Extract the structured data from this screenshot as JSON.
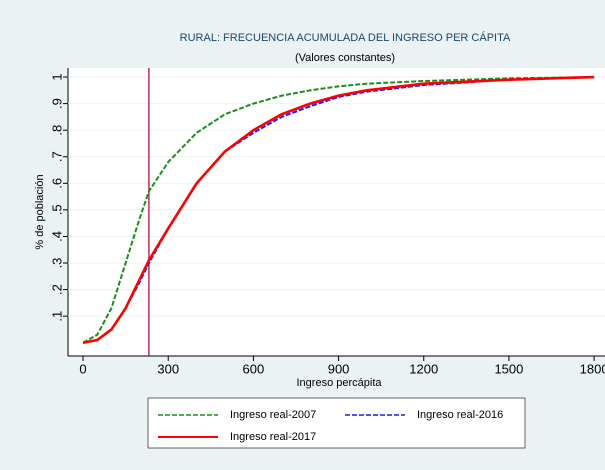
{
  "chart_data": {
    "type": "line",
    "title": "RURAL: FRECUENCIA ACUMULADA DEL INGRESO PER CÁPITA",
    "subtitle": "(Valores constantes)",
    "x_label": "Ingreso percápita",
    "y_label": "% de población",
    "x": [
      0,
      50,
      100,
      150,
      200,
      232,
      300,
      400,
      500,
      600,
      700,
      800,
      900,
      1000,
      1200,
      1500,
      1800
    ],
    "series": [
      {
        "name": "Ingreso real-2007",
        "color": "#1e8c1e",
        "dash": true,
        "values": [
          0,
          0.03,
          0.13,
          0.3,
          0.47,
          0.57,
          0.68,
          0.79,
          0.86,
          0.9,
          0.93,
          0.95,
          0.965,
          0.975,
          0.985,
          0.995,
          1.0
        ]
      },
      {
        "name": "Ingreso real-2016",
        "color": "#1a1aff",
        "dash": true,
        "values": [
          0,
          0.01,
          0.05,
          0.13,
          0.23,
          0.3,
          0.43,
          0.6,
          0.72,
          0.79,
          0.85,
          0.89,
          0.925,
          0.945,
          0.97,
          0.99,
          1.0
        ]
      },
      {
        "name": "Ingreso real-2017",
        "color": "#ff0000",
        "dash": false,
        "values": [
          0,
          0.01,
          0.05,
          0.13,
          0.24,
          0.31,
          0.43,
          0.6,
          0.72,
          0.8,
          0.86,
          0.9,
          0.93,
          0.95,
          0.975,
          0.99,
          1.0
        ]
      }
    ],
    "xline": 232,
    "xline_color": "#b0123a",
    "xlim": [
      -53,
      1856
    ],
    "xticks": [
      0,
      300,
      600,
      900,
      1200,
      1500,
      1800
    ],
    "ylim": [
      -0.05,
      1.034
    ],
    "yticks": [
      {
        "value": 0.1,
        "label": ".1"
      },
      {
        "value": 0.2,
        "label": ".2"
      },
      {
        "value": 0.3,
        "label": ".3"
      },
      {
        "value": 0.4,
        "label": ".4"
      },
      {
        "value": 0.5,
        "label": ".5"
      },
      {
        "value": 0.6,
        "label": ".6"
      },
      {
        "value": 0.7,
        "label": ".7"
      },
      {
        "value": 0.8,
        "label": ".8"
      },
      {
        "value": 0.9,
        "label": ".9"
      },
      1
    ],
    "grid": true
  }
}
